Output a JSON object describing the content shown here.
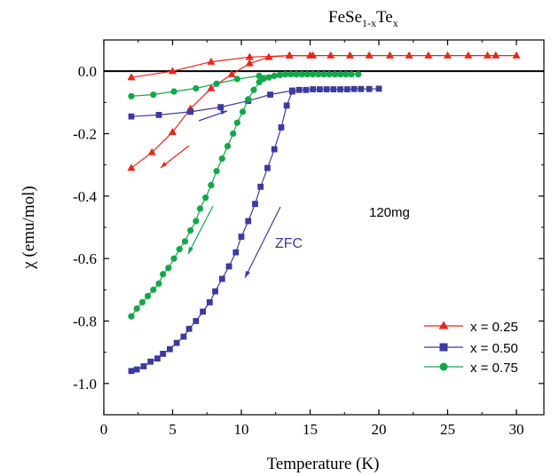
{
  "chart_data": {
    "type": "scatter",
    "title_base": "FeSe",
    "title_sub1": "1-x",
    "title_mid": "Te",
    "title_sub2": "x",
    "xlabel": "Temperature (K)",
    "ylabel": "χ (emu/mol)",
    "xlim": [
      0,
      32
    ],
    "ylim": [
      -1.1,
      0.1
    ],
    "xticks": [
      0,
      5,
      10,
      15,
      20,
      25,
      30
    ],
    "yticks": [
      0.0,
      -0.2,
      -0.4,
      -0.6,
      -0.8,
      -1.0
    ],
    "ytick_labels": [
      "0.0",
      "-0.2",
      "-0.4",
      "-0.6",
      "-0.8",
      "-1.0"
    ],
    "grid": false,
    "legend_position": "bottom-right",
    "annotations": {
      "mass": "120mg",
      "zfc": "ZFC"
    },
    "series": [
      {
        "name": "x = 0.25",
        "color": "#e8261e",
        "marker": "triangle",
        "zfc": [
          [
            2,
            -0.31
          ],
          [
            3.5,
            -0.26
          ],
          [
            5,
            -0.195
          ],
          [
            6.3,
            -0.12
          ],
          [
            7.8,
            -0.055
          ],
          [
            9.3,
            -0.01
          ],
          [
            10.6,
            0.025
          ],
          [
            12,
            0.045
          ],
          [
            13.5,
            0.05
          ],
          [
            15,
            0.05
          ]
        ],
        "fc": [
          [
            2,
            -0.02
          ],
          [
            5,
            0.0
          ],
          [
            7.8,
            0.03
          ],
          [
            10.6,
            0.045
          ],
          [
            13.5,
            0.05
          ],
          [
            15.2,
            0.05
          ],
          [
            16.5,
            0.05
          ],
          [
            17.9,
            0.05
          ],
          [
            19.3,
            0.05
          ],
          [
            20.8,
            0.05
          ],
          [
            22.2,
            0.05
          ],
          [
            23.6,
            0.05
          ],
          [
            25,
            0.05
          ],
          [
            26.5,
            0.05
          ],
          [
            27.9,
            0.05
          ],
          [
            28.5,
            0.05
          ],
          [
            30,
            0.05
          ]
        ]
      },
      {
        "name": "x = 0.50",
        "color": "#3b3b9e",
        "marker": "square",
        "zfc": [
          [
            2,
            -0.96
          ],
          [
            2.4,
            -0.955
          ],
          [
            2.9,
            -0.945
          ],
          [
            3.4,
            -0.93
          ],
          [
            3.9,
            -0.92
          ],
          [
            4.3,
            -0.905
          ],
          [
            4.8,
            -0.89
          ],
          [
            5.3,
            -0.87
          ],
          [
            5.8,
            -0.85
          ],
          [
            6.2,
            -0.825
          ],
          [
            6.7,
            -0.8
          ],
          [
            7.2,
            -0.77
          ],
          [
            7.7,
            -0.74
          ],
          [
            8.1,
            -0.705
          ],
          [
            8.6,
            -0.665
          ],
          [
            9.1,
            -0.625
          ],
          [
            9.6,
            -0.58
          ],
          [
            10,
            -0.53
          ],
          [
            10.5,
            -0.48
          ],
          [
            11,
            -0.425
          ],
          [
            11.4,
            -0.37
          ],
          [
            11.9,
            -0.31
          ],
          [
            12.4,
            -0.25
          ],
          [
            12.9,
            -0.18
          ],
          [
            13.3,
            -0.11
          ],
          [
            13.7,
            -0.065
          ],
          [
            14.2,
            -0.06
          ],
          [
            14.7,
            -0.06
          ],
          [
            15.2,
            -0.058
          ],
          [
            15.7,
            -0.058
          ],
          [
            16.2,
            -0.058
          ],
          [
            16.7,
            -0.058
          ],
          [
            17.2,
            -0.058
          ],
          [
            17.7,
            -0.058
          ],
          [
            18.2,
            -0.057
          ],
          [
            18.7,
            -0.057
          ],
          [
            19.3,
            -0.057
          ],
          [
            20,
            -0.056
          ]
        ],
        "fc": [
          [
            2,
            -0.145
          ],
          [
            4,
            -0.14
          ],
          [
            6.3,
            -0.13
          ],
          [
            8.5,
            -0.115
          ],
          [
            10.5,
            -0.095
          ],
          [
            12.1,
            -0.075
          ],
          [
            13.7,
            -0.062
          ]
        ]
      },
      {
        "name": "x = 0.75",
        "color": "#14a64a",
        "marker": "circle",
        "zfc": [
          [
            2,
            -0.785
          ],
          [
            2.4,
            -0.76
          ],
          [
            2.8,
            -0.74
          ],
          [
            3.2,
            -0.72
          ],
          [
            3.6,
            -0.7
          ],
          [
            4,
            -0.68
          ],
          [
            4.3,
            -0.65
          ],
          [
            4.7,
            -0.63
          ],
          [
            5.1,
            -0.6
          ],
          [
            5.5,
            -0.57
          ],
          [
            5.9,
            -0.545
          ],
          [
            6.3,
            -0.51
          ],
          [
            6.7,
            -0.48
          ],
          [
            7,
            -0.44
          ],
          [
            7.4,
            -0.405
          ],
          [
            7.8,
            -0.365
          ],
          [
            8.2,
            -0.32
          ],
          [
            8.6,
            -0.28
          ],
          [
            9,
            -0.24
          ],
          [
            9.4,
            -0.2
          ],
          [
            9.7,
            -0.165
          ],
          [
            10.1,
            -0.13
          ],
          [
            10.5,
            -0.09
          ],
          [
            10.9,
            -0.06
          ],
          [
            11.3,
            -0.035
          ],
          [
            11.6,
            -0.025
          ],
          [
            12,
            -0.02
          ],
          [
            12.4,
            -0.015
          ],
          [
            12.8,
            -0.012
          ],
          [
            13.2,
            -0.01
          ],
          [
            13.6,
            -0.01
          ],
          [
            14,
            -0.01
          ],
          [
            14.4,
            -0.01
          ],
          [
            14.8,
            -0.01
          ],
          [
            15.2,
            -0.01
          ],
          [
            15.6,
            -0.01
          ],
          [
            16,
            -0.01
          ],
          [
            16.4,
            -0.01
          ],
          [
            16.8,
            -0.01
          ],
          [
            17.2,
            -0.01
          ],
          [
            17.6,
            -0.01
          ],
          [
            18,
            -0.01
          ],
          [
            18.5,
            -0.01
          ]
        ],
        "fc": [
          [
            2,
            -0.08
          ],
          [
            3.6,
            -0.075
          ],
          [
            5.1,
            -0.065
          ],
          [
            6.7,
            -0.055
          ],
          [
            8.2,
            -0.04
          ],
          [
            9.7,
            -0.025
          ],
          [
            11.3,
            -0.015
          ],
          [
            12.8,
            -0.012
          ]
        ]
      }
    ]
  }
}
